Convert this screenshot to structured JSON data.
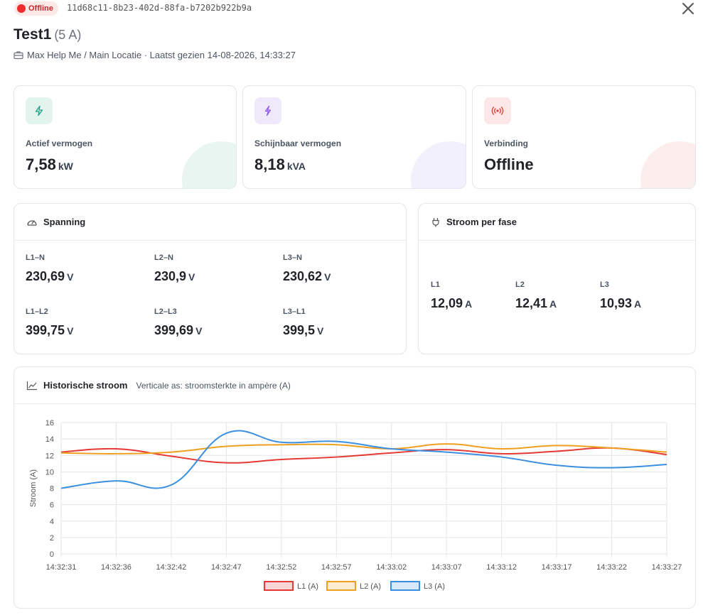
{
  "header": {
    "status": "Offline",
    "device_id": "11d68c11-8b23-402d-88fa-b7202b922b9a",
    "title": "Test1",
    "title_sub": "(5 A)",
    "breadcrumb": "Max Help Me / Main Locatie · Laatst gezien 14-08-2026, 14:33:27"
  },
  "stats": [
    {
      "label": "Actief vermogen",
      "value": "7,58",
      "unit": "kW",
      "icon": "bolt-icon",
      "color": "#16a085"
    },
    {
      "label": "Schijnbaar vermogen",
      "value": "8,18",
      "unit": "kVA",
      "icon": "flash-icon",
      "color": "#8e5cf0"
    },
    {
      "label": "Verbinding",
      "value": "Offline",
      "unit": "",
      "icon": "signal-icon",
      "color": "#e53935"
    }
  ],
  "voltage": {
    "title": "Spanning",
    "items": [
      {
        "label": "L1–N",
        "value": "230,69",
        "unit": "V"
      },
      {
        "label": "L2–N",
        "value": "230,9",
        "unit": "V"
      },
      {
        "label": "L3–N",
        "value": "230,62",
        "unit": "V"
      },
      {
        "label": "L1–L2",
        "value": "399,75",
        "unit": "V"
      },
      {
        "label": "L2–L3",
        "value": "399,69",
        "unit": "V"
      },
      {
        "label": "L3–L1",
        "value": "399,5",
        "unit": "V"
      }
    ]
  },
  "current": {
    "title": "Stroom per fase",
    "items": [
      {
        "label": "L1",
        "value": "12,09",
        "unit": "A"
      },
      {
        "label": "L2",
        "value": "12,41",
        "unit": "A"
      },
      {
        "label": "L3",
        "value": "10,93",
        "unit": "A"
      }
    ]
  },
  "history": {
    "title": "Historische stroom",
    "hint": "Verticale as: stroomsterkte in ampère (A)"
  },
  "chart_data": {
    "type": "line",
    "x": [
      "14:32:31",
      "14:32:36",
      "14:32:42",
      "14:32:47",
      "14:32:52",
      "14:32:57",
      "14:33:02",
      "14:33:07",
      "14:33:12",
      "14:33:17",
      "14:33:22",
      "14:33:27"
    ],
    "ylabel": "Stroom (A)",
    "ylim": [
      0,
      16
    ],
    "yticks": [
      0,
      2,
      4,
      6,
      8,
      10,
      12,
      14,
      16
    ],
    "grid": true,
    "legend": "bottom",
    "series": [
      {
        "name": "L1 (A)",
        "color": "#e53935",
        "values": [
          12.4,
          12.8,
          11.9,
          11.1,
          11.5,
          11.8,
          12.3,
          12.7,
          12.2,
          12.5,
          12.9,
          12.1
        ]
      },
      {
        "name": "L2 (A)",
        "color": "#f0a020",
        "values": [
          12.3,
          12.2,
          12.4,
          13.1,
          13.3,
          13.3,
          12.8,
          13.4,
          12.8,
          13.2,
          12.9,
          12.4
        ]
      },
      {
        "name": "L3 (A)",
        "color": "#3b8fe0",
        "values": [
          8.0,
          8.9,
          8.4,
          14.7,
          13.6,
          13.7,
          12.8,
          12.4,
          11.8,
          10.8,
          10.5,
          10.9
        ]
      }
    ]
  }
}
